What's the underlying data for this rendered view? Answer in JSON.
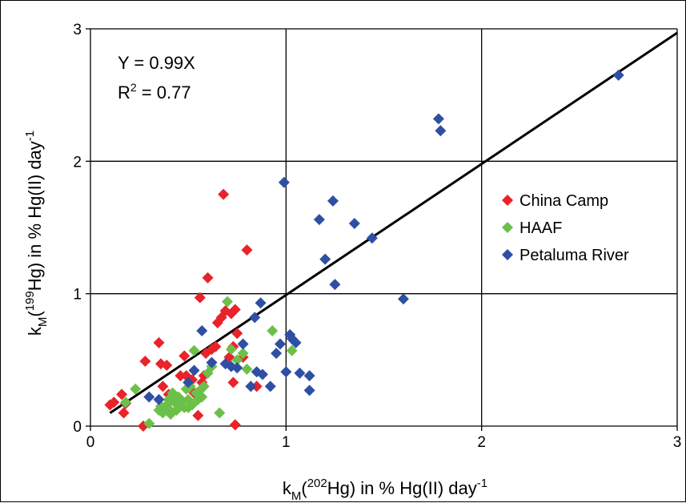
{
  "chart_data": {
    "type": "scatter",
    "xlabel": {
      "pre": "k",
      "sub": "M",
      "mid": "(",
      "sup": "202",
      "post": "Hg) in % Hg(II) day",
      "sup2": "-1"
    },
    "ylabel": {
      "pre": "k",
      "sub": "M",
      "mid": "(",
      "sup": "199",
      "post": "Hg) in % Hg(II) day",
      "sup2": "-1"
    },
    "xlim": [
      0,
      3
    ],
    "ylim": [
      0,
      3
    ],
    "xticks": [
      "0",
      "1",
      "2",
      "3"
    ],
    "yticks": [
      "0",
      "1",
      "2",
      "3"
    ],
    "grid": true,
    "legend_position": "right",
    "annotation": {
      "equation": "Y = 0.99X",
      "r2_pre": "R",
      "r2_sup": "2",
      "r2_post": " = 0.77"
    },
    "fit_line": {
      "slope": 0.99,
      "x_range": [
        0.1,
        3.0
      ],
      "color": "#000000"
    },
    "series": [
      {
        "name": "China Camp",
        "color": "#e8232a",
        "points": [
          [
            0.1,
            0.16
          ],
          [
            0.12,
            0.18
          ],
          [
            0.16,
            0.24
          ],
          [
            0.17,
            0.1
          ],
          [
            0.18,
            0.17
          ],
          [
            0.27,
            0.0
          ],
          [
            0.28,
            0.49
          ],
          [
            0.35,
            0.63
          ],
          [
            0.36,
            0.47
          ],
          [
            0.37,
            0.3
          ],
          [
            0.39,
            0.46
          ],
          [
            0.4,
            0.24
          ],
          [
            0.43,
            0.2
          ],
          [
            0.46,
            0.38
          ],
          [
            0.48,
            0.53
          ],
          [
            0.49,
            0.38
          ],
          [
            0.52,
            0.35
          ],
          [
            0.53,
            0.25
          ],
          [
            0.55,
            0.08
          ],
          [
            0.56,
            0.97
          ],
          [
            0.57,
            0.33
          ],
          [
            0.58,
            0.38
          ],
          [
            0.59,
            0.55
          ],
          [
            0.6,
            1.12
          ],
          [
            0.62,
            0.58
          ],
          [
            0.64,
            0.6
          ],
          [
            0.65,
            0.78
          ],
          [
            0.67,
            0.82
          ],
          [
            0.68,
            1.75
          ],
          [
            0.69,
            0.87
          ],
          [
            0.71,
            0.52
          ],
          [
            0.72,
            0.85
          ],
          [
            0.73,
            0.33
          ],
          [
            0.73,
            0.6
          ],
          [
            0.74,
            0.88
          ],
          [
            0.75,
            0.7
          ],
          [
            0.78,
            0.52
          ],
          [
            0.8,
            1.33
          ],
          [
            0.85,
            0.3
          ],
          [
            0.74,
            0.01
          ]
        ]
      },
      {
        "name": "HAAF",
        "color": "#6cc04a",
        "points": [
          [
            0.18,
            0.18
          ],
          [
            0.23,
            0.28
          ],
          [
            0.3,
            0.02
          ],
          [
            0.35,
            0.12
          ],
          [
            0.36,
            0.15
          ],
          [
            0.37,
            0.1
          ],
          [
            0.38,
            0.14
          ],
          [
            0.39,
            0.16
          ],
          [
            0.4,
            0.2
          ],
          [
            0.41,
            0.09
          ],
          [
            0.42,
            0.25
          ],
          [
            0.43,
            0.18
          ],
          [
            0.44,
            0.12
          ],
          [
            0.45,
            0.22
          ],
          [
            0.46,
            0.15
          ],
          [
            0.47,
            0.19
          ],
          [
            0.48,
            0.14
          ],
          [
            0.49,
            0.28
          ],
          [
            0.5,
            0.2
          ],
          [
            0.51,
            0.3
          ],
          [
            0.52,
            0.16
          ],
          [
            0.53,
            0.57
          ],
          [
            0.54,
            0.25
          ],
          [
            0.55,
            0.2
          ],
          [
            0.56,
            0.27
          ],
          [
            0.57,
            0.22
          ],
          [
            0.58,
            0.3
          ],
          [
            0.6,
            0.4
          ],
          [
            0.62,
            0.45
          ],
          [
            0.66,
            0.1
          ],
          [
            0.7,
            0.94
          ],
          [
            0.72,
            0.58
          ],
          [
            0.75,
            0.5
          ],
          [
            0.78,
            0.55
          ],
          [
            0.8,
            0.43
          ],
          [
            0.93,
            0.72
          ],
          [
            1.03,
            0.57
          ],
          [
            0.4,
            0.13
          ],
          [
            0.44,
            0.17
          ],
          [
            0.5,
            0.14
          ]
        ]
      },
      {
        "name": "Petaluma River",
        "color": "#2e4fa3",
        "points": [
          [
            0.3,
            0.22
          ],
          [
            0.35,
            0.2
          ],
          [
            0.5,
            0.33
          ],
          [
            0.53,
            0.42
          ],
          [
            0.57,
            0.72
          ],
          [
            0.62,
            0.48
          ],
          [
            0.69,
            0.47
          ],
          [
            0.72,
            0.45
          ],
          [
            0.75,
            0.44
          ],
          [
            0.78,
            0.62
          ],
          [
            0.82,
            0.3
          ],
          [
            0.84,
            0.82
          ],
          [
            0.85,
            0.41
          ],
          [
            0.87,
            0.93
          ],
          [
            0.88,
            0.39
          ],
          [
            0.92,
            0.3
          ],
          [
            0.95,
            0.55
          ],
          [
            0.97,
            0.62
          ],
          [
            0.99,
            1.84
          ],
          [
            1.0,
            0.41
          ],
          [
            1.02,
            0.69
          ],
          [
            1.03,
            0.66
          ],
          [
            1.05,
            0.63
          ],
          [
            1.07,
            0.4
          ],
          [
            1.12,
            0.38
          ],
          [
            1.12,
            0.27
          ],
          [
            1.17,
            1.56
          ],
          [
            1.2,
            1.26
          ],
          [
            1.24,
            1.7
          ],
          [
            1.25,
            1.07
          ],
          [
            1.35,
            1.53
          ],
          [
            1.44,
            1.42
          ],
          [
            1.6,
            0.96
          ],
          [
            1.78,
            2.32
          ],
          [
            1.79,
            2.23
          ],
          [
            2.7,
            2.65
          ]
        ]
      }
    ]
  }
}
